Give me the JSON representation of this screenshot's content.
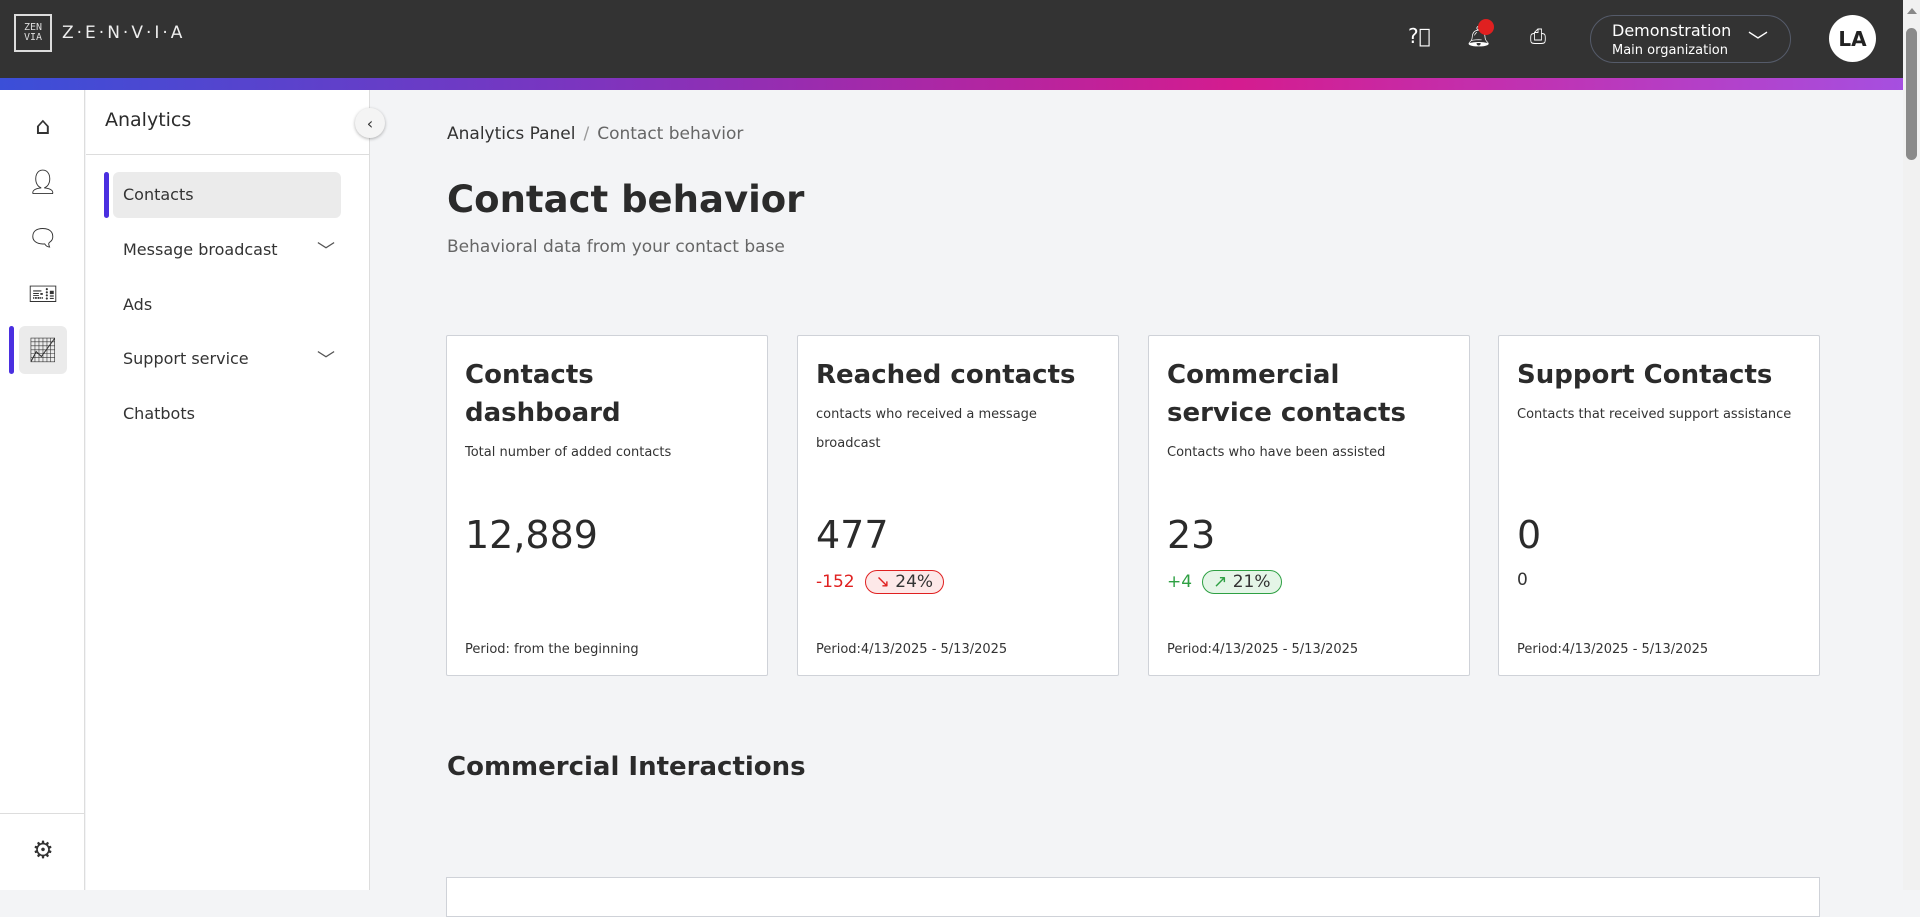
{
  "header": {
    "logo_text": "Z·E·N·V·I·A",
    "logo_mark": "ZEN VIA",
    "org_name": "Demonstration",
    "org_sub": "Main organization",
    "avatar": "LA",
    "icons": [
      "help-icon",
      "bell-icon",
      "inbox-icon"
    ],
    "notification_color": "#e02020"
  },
  "rail": {
    "icons": [
      "home-icon",
      "user-icon",
      "chat-icon",
      "ticket-icon",
      "analytics-icon",
      "gear-icon"
    ],
    "active": "analytics-icon",
    "accent": "#4a2fe0"
  },
  "submenu": {
    "title": "Analytics",
    "items": [
      {
        "label": "Contacts",
        "active": true
      },
      {
        "label": "Message broadcast",
        "expandable": true
      },
      {
        "label": "Ads"
      },
      {
        "label": "Support service",
        "expandable": true
      },
      {
        "label": "Chatbots"
      }
    ]
  },
  "breadcrumb": {
    "root": "Analytics Panel",
    "sep": "/",
    "current": "Contact behavior"
  },
  "page": {
    "title": "Contact behavior",
    "subtitle": "Behavioral data from your contact base"
  },
  "cards": [
    {
      "title": "Contacts dashboard",
      "desc": "Total number of added contacts",
      "value": "12,889",
      "period": "Period: from the beginning"
    },
    {
      "title": "Reached contacts",
      "desc": "contacts who received a message broadcast",
      "value": "477",
      "delta": "-152",
      "pct": "24%",
      "trend": "down",
      "period": "Period:4/13/2025 - 5/13/2025"
    },
    {
      "title": "Commercial service contacts",
      "desc": "Contacts who have been assisted",
      "value": "23",
      "delta": "+4",
      "pct": "21%",
      "trend": "up",
      "period": "Period:4/13/2025 - 5/13/2025"
    },
    {
      "title": "Support Contacts",
      "desc": "Contacts that received support assistance",
      "value": "0",
      "delta": "0",
      "period": "Period:4/13/2025 - 5/13/2025"
    }
  ],
  "section": {
    "title": "Commercial Interactions"
  }
}
